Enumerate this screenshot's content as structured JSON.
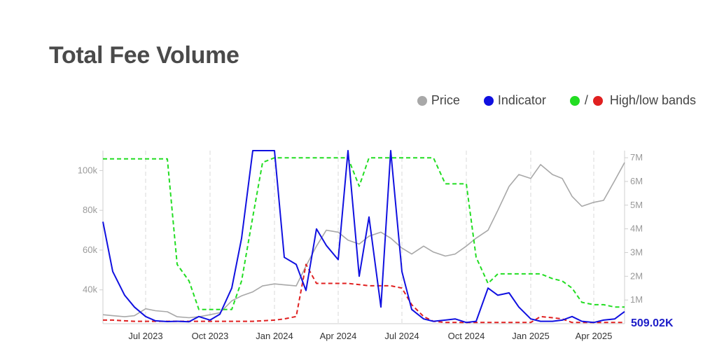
{
  "title": "Total Fee Volume",
  "legend": {
    "price": "Price",
    "indicator": "Indicator",
    "bands": "High/low bands",
    "bands_separator": "/"
  },
  "colors": {
    "price": "#a8a8a8",
    "indicator": "#1010e0",
    "high_band": "#22dd22",
    "low_band": "#e02020",
    "grid": "#d8d8d8"
  },
  "chart_data": {
    "type": "line",
    "title": "Total Fee Volume",
    "x_tick_labels": [
      "Jul 2023",
      "Oct 2023",
      "Jan 2024",
      "Apr 2024",
      "Jul 2024",
      "Oct 2024",
      "Jan 2025",
      "Apr 2025"
    ],
    "y_left_ticks": [
      "40k",
      "60k",
      "80k",
      "100k"
    ],
    "y_right_ticks": [
      "1M",
      "2M",
      "3M",
      "4M",
      "5M",
      "6M",
      "7M"
    ],
    "y_left_range": [
      23000,
      110000
    ],
    "y_right_range": [
      0,
      7300000
    ],
    "grid": "vertical dashed",
    "legend_position": "top-right",
    "last_value_label": "509.02K",
    "x": [
      "2023-05-01",
      "2023-05-15",
      "2023-06-01",
      "2023-06-15",
      "2023-07-01",
      "2023-07-15",
      "2023-08-01",
      "2023-08-15",
      "2023-09-01",
      "2023-09-15",
      "2023-10-01",
      "2023-10-15",
      "2023-11-01",
      "2023-11-15",
      "2023-12-01",
      "2023-12-15",
      "2024-01-01",
      "2024-01-15",
      "2024-02-01",
      "2024-02-15",
      "2024-03-01",
      "2024-03-15",
      "2024-04-01",
      "2024-04-15",
      "2024-05-01",
      "2024-05-15",
      "2024-06-01",
      "2024-06-15",
      "2024-07-01",
      "2024-07-15",
      "2024-08-01",
      "2024-08-15",
      "2024-09-01",
      "2024-09-15",
      "2024-10-01",
      "2024-10-15",
      "2024-11-01",
      "2024-11-15",
      "2024-12-01",
      "2024-12-15",
      "2025-01-01",
      "2025-01-15",
      "2025-02-01",
      "2025-02-15",
      "2025-03-01",
      "2025-03-15",
      "2025-04-01",
      "2025-04-15",
      "2025-05-01",
      "2025-05-15"
    ],
    "series": [
      {
        "name": "Price",
        "axis": "left",
        "values": [
          27500,
          27000,
          26500,
          27000,
          30500,
          29500,
          29000,
          26500,
          26000,
          26500,
          27500,
          28500,
          34500,
          37000,
          39000,
          42000,
          43000,
          42500,
          42000,
          52000,
          62000,
          70000,
          69000,
          65000,
          63000,
          67000,
          69000,
          66000,
          61000,
          58000,
          62000,
          59000,
          57000,
          58000,
          62000,
          66000,
          70000,
          80000,
          92000,
          98000,
          96000,
          103000,
          98000,
          96000,
          87000,
          82000,
          84000,
          85000,
          95000,
          104000
        ]
      },
      {
        "name": "Indicator",
        "axis": "right",
        "values": [
          4300000,
          2200000,
          1200000,
          700000,
          300000,
          120000,
          90000,
          100000,
          80000,
          300000,
          150000,
          400000,
          1500000,
          3600000,
          7300000,
          7300000,
          7300000,
          2800000,
          2500000,
          1400000,
          4000000,
          3300000,
          2700000,
          7300000,
          2000000,
          4500000,
          700000,
          7300000,
          2200000,
          600000,
          200000,
          100000,
          150000,
          200000,
          50000,
          100000,
          1500000,
          1200000,
          1300000,
          700000,
          200000,
          100000,
          100000,
          150000,
          300000,
          100000,
          50000,
          150000,
          200000,
          509020
        ]
      },
      {
        "name": "High band",
        "axis": "right",
        "values": [
          6950000,
          6950000,
          6950000,
          6950000,
          6950000,
          6950000,
          6950000,
          2500000,
          1800000,
          600000,
          600000,
          600000,
          600000,
          1800000,
          4500000,
          6800000,
          7000000,
          7000000,
          7000000,
          7000000,
          7000000,
          7000000,
          7000000,
          7000000,
          5800000,
          7000000,
          7000000,
          7000000,
          7000000,
          7000000,
          7000000,
          7000000,
          5900000,
          5900000,
          5900000,
          2800000,
          1700000,
          2100000,
          2100000,
          2100000,
          2100000,
          2100000,
          1900000,
          1800000,
          1500000,
          900000,
          800000,
          800000,
          700000,
          700000
        ]
      },
      {
        "name": "Low band",
        "axis": "right",
        "values": [
          150000,
          150000,
          120000,
          100000,
          100000,
          100000,
          100000,
          100000,
          100000,
          100000,
          100000,
          100000,
          100000,
          100000,
          100000,
          120000,
          150000,
          200000,
          300000,
          2500000,
          1700000,
          1700000,
          1700000,
          1700000,
          1650000,
          1600000,
          1600000,
          1600000,
          1500000,
          800000,
          300000,
          100000,
          50000,
          50000,
          50000,
          50000,
          50000,
          50000,
          50000,
          50000,
          50000,
          300000,
          250000,
          200000,
          50000,
          50000,
          50000,
          50000,
          50000,
          50000
        ]
      }
    ]
  }
}
